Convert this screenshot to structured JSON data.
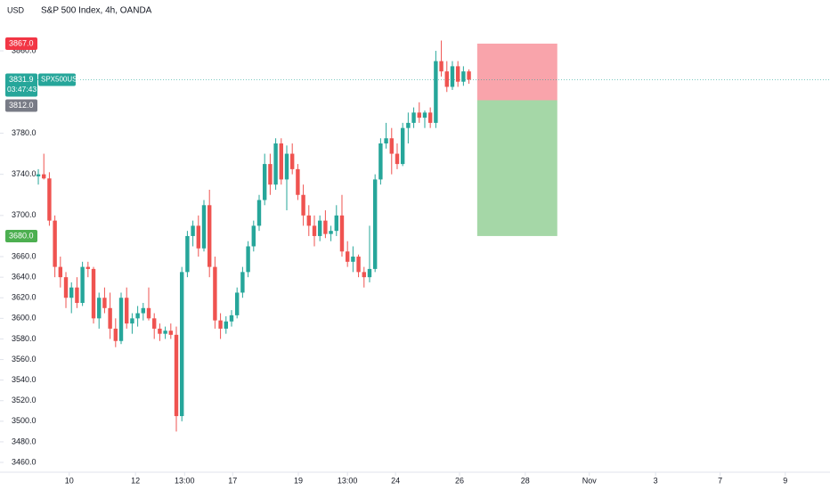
{
  "chart_data": {
    "type": "candlestick",
    "title": "S&P 500 Index, 4h, OANDA",
    "currency": "USD",
    "series": [
      {
        "name": "SPX500USD",
        "up_color": "#26a69a",
        "down_color": "#ef5350",
        "ohlc": [
          [
            3738,
            3745,
            3730,
            3740
          ],
          [
            3740,
            3760,
            3735,
            3736
          ],
          [
            3736,
            3742,
            3690,
            3695
          ],
          [
            3695,
            3700,
            3640,
            3650
          ],
          [
            3650,
            3660,
            3630,
            3640
          ],
          [
            3640,
            3645,
            3610,
            3620
          ],
          [
            3620,
            3635,
            3605,
            3630
          ],
          [
            3630,
            3640,
            3610,
            3615
          ],
          [
            3615,
            3655,
            3612,
            3650
          ],
          [
            3650,
            3655,
            3640,
            3648
          ],
          [
            3648,
            3650,
            3595,
            3600
          ],
          [
            3600,
            3625,
            3590,
            3620
          ],
          [
            3620,
            3630,
            3605,
            3610
          ],
          [
            3610,
            3625,
            3580,
            3590
          ],
          [
            3590,
            3600,
            3572,
            3578
          ],
          [
            3578,
            3625,
            3575,
            3620
          ],
          [
            3620,
            3630,
            3590,
            3595
          ],
          [
            3595,
            3605,
            3585,
            3600
          ],
          [
            3600,
            3612,
            3592,
            3605
          ],
          [
            3605,
            3615,
            3598,
            3610
          ],
          [
            3610,
            3630,
            3598,
            3600
          ],
          [
            3600,
            3605,
            3580,
            3590
          ],
          [
            3590,
            3595,
            3578,
            3585
          ],
          [
            3585,
            3592,
            3580,
            3588
          ],
          [
            3588,
            3595,
            3580,
            3584
          ],
          [
            3584,
            3592,
            3490,
            3505
          ],
          [
            3505,
            3650,
            3500,
            3645
          ],
          [
            3645,
            3685,
            3640,
            3680
          ],
          [
            3680,
            3695,
            3670,
            3690
          ],
          [
            3690,
            3700,
            3660,
            3668
          ],
          [
            3668,
            3715,
            3665,
            3710
          ],
          [
            3710,
            3725,
            3640,
            3650
          ],
          [
            3650,
            3660,
            3590,
            3598
          ],
          [
            3598,
            3605,
            3580,
            3590
          ],
          [
            3590,
            3602,
            3585,
            3597
          ],
          [
            3597,
            3608,
            3592,
            3603
          ],
          [
            3603,
            3630,
            3600,
            3625
          ],
          [
            3625,
            3650,
            3620,
            3645
          ],
          [
            3645,
            3675,
            3640,
            3670
          ],
          [
            3670,
            3695,
            3665,
            3690
          ],
          [
            3690,
            3720,
            3685,
            3715
          ],
          [
            3715,
            3760,
            3710,
            3750
          ],
          [
            3750,
            3760,
            3720,
            3730
          ],
          [
            3730,
            3775,
            3725,
            3770
          ],
          [
            3770,
            3775,
            3730,
            3735
          ],
          [
            3735,
            3768,
            3705,
            3760
          ],
          [
            3760,
            3770,
            3740,
            3745
          ],
          [
            3745,
            3750,
            3715,
            3720
          ],
          [
            3720,
            3730,
            3690,
            3700
          ],
          [
            3700,
            3710,
            3680,
            3690
          ],
          [
            3690,
            3700,
            3670,
            3680
          ],
          [
            3680,
            3700,
            3675,
            3695
          ],
          [
            3695,
            3705,
            3678,
            3682
          ],
          [
            3682,
            3690,
            3675,
            3685
          ],
          [
            3685,
            3710,
            3680,
            3700
          ],
          [
            3700,
            3720,
            3660,
            3665
          ],
          [
            3665,
            3675,
            3650,
            3655
          ],
          [
            3655,
            3670,
            3645,
            3660
          ],
          [
            3660,
            3662,
            3640,
            3645
          ],
          [
            3645,
            3650,
            3630,
            3640
          ],
          [
            3640,
            3690,
            3635,
            3648
          ],
          [
            3648,
            3740,
            3645,
            3735
          ],
          [
            3735,
            3775,
            3730,
            3770
          ],
          [
            3770,
            3790,
            3765,
            3775
          ],
          [
            3775,
            3785,
            3740,
            3760
          ],
          [
            3760,
            3770,
            3745,
            3750
          ],
          [
            3750,
            3790,
            3748,
            3785
          ],
          [
            3785,
            3800,
            3770,
            3790
          ],
          [
            3790,
            3805,
            3785,
            3800
          ],
          [
            3800,
            3810,
            3790,
            3795
          ],
          [
            3795,
            3802,
            3785,
            3800
          ],
          [
            3800,
            3805,
            3785,
            3790
          ],
          [
            3790,
            3860,
            3785,
            3850
          ],
          [
            3850,
            3870,
            3835,
            3840
          ],
          [
            3840,
            3850,
            3820,
            3825
          ],
          [
            3825,
            3850,
            3822,
            3845
          ],
          [
            3845,
            3850,
            3825,
            3830
          ],
          [
            3830,
            3845,
            3826,
            3840
          ],
          [
            3840,
            3842,
            3828,
            3832
          ]
        ]
      }
    ],
    "ylim": [
      3450.5,
      3909.4
    ],
    "yticks": [
      {
        "value": 3860,
        "label": "3860.0"
      },
      {
        "value": 3780,
        "label": "3780.0"
      },
      {
        "value": 3740,
        "label": "3740.0"
      },
      {
        "value": 3700,
        "label": "3700.0"
      },
      {
        "value": 3660,
        "label": "3660.0"
      },
      {
        "value": 3640,
        "label": "3640.0"
      },
      {
        "value": 3620,
        "label": "3620.0"
      },
      {
        "value": 3600,
        "label": "3600.0"
      },
      {
        "value": 3580,
        "label": "3580.0"
      },
      {
        "value": 3560,
        "label": "3560.0"
      },
      {
        "value": 3540,
        "label": "3540.0"
      },
      {
        "value": 3520,
        "label": "3520.0"
      },
      {
        "value": 3500,
        "label": "3500.0"
      },
      {
        "value": 3480,
        "label": "3480.0"
      },
      {
        "value": 3460,
        "label": "3460.0"
      }
    ],
    "xlim": [
      -6.94,
      143.4
    ],
    "xticks": [
      {
        "value": 5.6,
        "label": "10"
      },
      {
        "value": 17.6,
        "label": "12"
      },
      {
        "value": 26.5,
        "label": "13:00"
      },
      {
        "value": 35.2,
        "label": "17"
      },
      {
        "value": 47.1,
        "label": "19"
      },
      {
        "value": 56,
        "label": "13:00"
      },
      {
        "value": 64.7,
        "label": "24"
      },
      {
        "value": 76.3,
        "label": "26"
      },
      {
        "value": 88.2,
        "label": "28"
      },
      {
        "value": 99.8,
        "label": "Nov"
      },
      {
        "value": 111.8,
        "label": "3"
      },
      {
        "value": 123.5,
        "label": "7"
      },
      {
        "value": 135.3,
        "label": "9"
      }
    ],
    "position": {
      "stop": {
        "value": 3867.0,
        "label": "3867.0",
        "color": "#f23645"
      },
      "entry": {
        "value": 3812.0,
        "label": "3812.0",
        "color": "#787b86"
      },
      "target": {
        "value": 3680.0,
        "label": "3680.0",
        "color": "#4caf50"
      }
    },
    "last_price": {
      "value": 3831.9,
      "label": "3831.9",
      "countdown": "03:47:43",
      "color": "#26a69a"
    }
  }
}
